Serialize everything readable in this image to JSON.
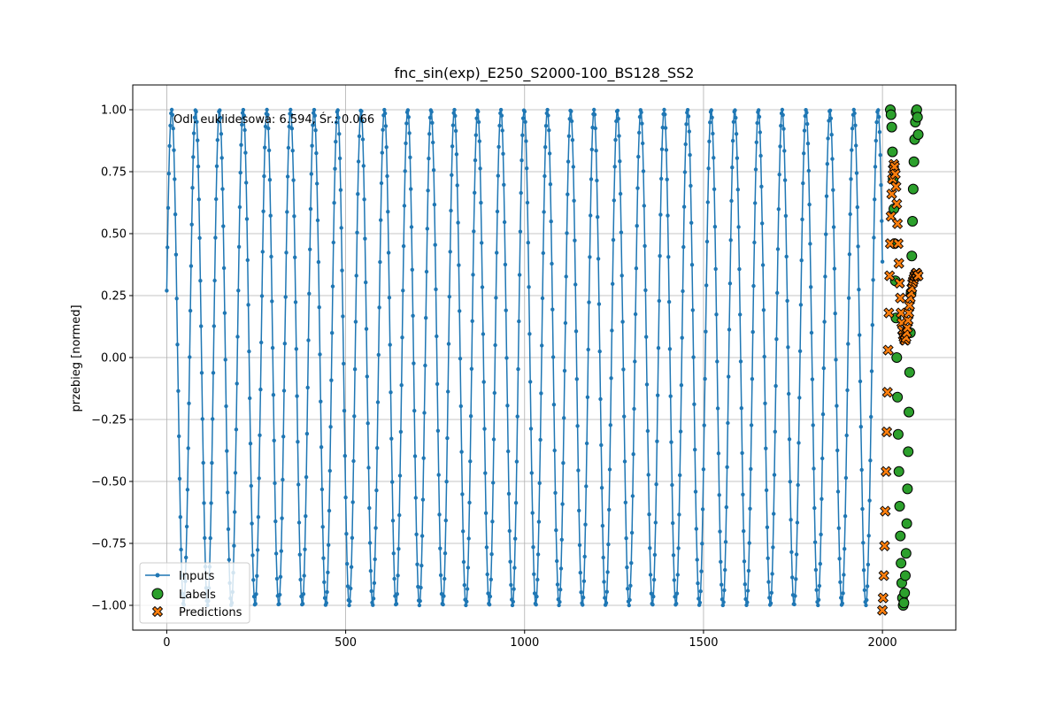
{
  "chart_data": {
    "type": "line",
    "title": "fnc_sin(exp)_E250_S2000-100_BS128_SS2",
    "xlabel": "",
    "ylabel": "przebieg [normed]",
    "xlim": [
      -95,
      2205
    ],
    "ylim": [
      -1.1,
      1.1
    ],
    "xticks": [
      0,
      500,
      1000,
      1500,
      2000
    ],
    "xtick_labels": [
      "0",
      "500",
      "1000",
      "1500",
      "2000"
    ],
    "yticks": [
      -1.0,
      -0.75,
      -0.5,
      -0.25,
      0.0,
      0.25,
      0.5,
      0.75,
      1.0
    ],
    "ytick_labels": [
      "−1.00",
      "−0.75",
      "−0.50",
      "−0.25",
      "0.00",
      "0.25",
      "0.50",
      "0.75",
      "1.00"
    ],
    "grid": true,
    "legend_position": "lower-left",
    "annotation": "Odl. euklidesowa: 6.594, Śr.: 0.066",
    "series": [
      {
        "name": "Inputs",
        "kind": "line-with-markers",
        "color": "#1f77b4",
        "x_start": 0,
        "x_end": 2000,
        "step": 2,
        "description_formula": "sin-like oscillation, amplitude 1, period ~67 samples",
        "start_value": 0.27
      },
      {
        "name": "Labels",
        "kind": "scatter",
        "color": "#2ca02c",
        "marker": "circle",
        "x": [
          2022,
          2024,
          2026,
          2028,
          2030,
          2032,
          2034,
          2036,
          2038,
          2040,
          2042,
          2044,
          2046,
          2048,
          2050,
          2052,
          2054,
          2056,
          2058,
          2060,
          2062,
          2064,
          2066,
          2068,
          2070,
          2072,
          2074,
          2076,
          2078,
          2080,
          2082,
          2084,
          2086,
          2088,
          2090,
          2092,
          2094,
          2096,
          2098,
          2100
        ],
        "y": [
          1.0,
          0.98,
          0.93,
          0.83,
          0.72,
          0.6,
          0.46,
          0.31,
          0.16,
          0.0,
          -0.16,
          -0.31,
          -0.46,
          -0.6,
          -0.72,
          -0.83,
          -0.91,
          -0.97,
          -1.0,
          -0.99,
          -0.95,
          -0.88,
          -0.79,
          -0.67,
          -0.53,
          -0.38,
          -0.22,
          -0.06,
          0.1,
          0.26,
          0.41,
          0.55,
          0.68,
          0.79,
          0.88,
          0.95,
          0.99,
          1.0,
          0.97,
          0.9
        ]
      },
      {
        "name": "Predictions",
        "kind": "scatter",
        "color": "#ff7f0e",
        "marker": "x-filled",
        "x": [
          2000,
          2002,
          2004,
          2006,
          2008,
          2010,
          2012,
          2014,
          2016,
          2018,
          2020,
          2022,
          2024,
          2026,
          2028,
          2030,
          2032,
          2034,
          2036,
          2038,
          2040,
          2042,
          2044,
          2046,
          2048,
          2050,
          2052,
          2054,
          2056,
          2058,
          2060,
          2062,
          2064,
          2066,
          2068,
          2070,
          2072,
          2074,
          2076,
          2078,
          2080,
          2082,
          2084,
          2086,
          2088,
          2090,
          2092,
          2094,
          2096,
          2098,
          2100
        ],
        "y": [
          -1.02,
          -0.97,
          -0.88,
          -0.76,
          -0.62,
          -0.46,
          -0.3,
          -0.14,
          0.03,
          0.18,
          0.33,
          0.46,
          0.57,
          0.66,
          0.72,
          0.76,
          0.78,
          0.77,
          0.74,
          0.69,
          0.62,
          0.54,
          0.46,
          0.38,
          0.3,
          0.24,
          0.18,
          0.14,
          0.11,
          0.09,
          0.08,
          0.07,
          0.07,
          0.08,
          0.1,
          0.12,
          0.15,
          0.18,
          0.21,
          0.24,
          0.26,
          0.28,
          0.3,
          0.31,
          0.32,
          0.33,
          0.33,
          0.34,
          0.34,
          0.33,
          0.33
        ]
      }
    ]
  }
}
